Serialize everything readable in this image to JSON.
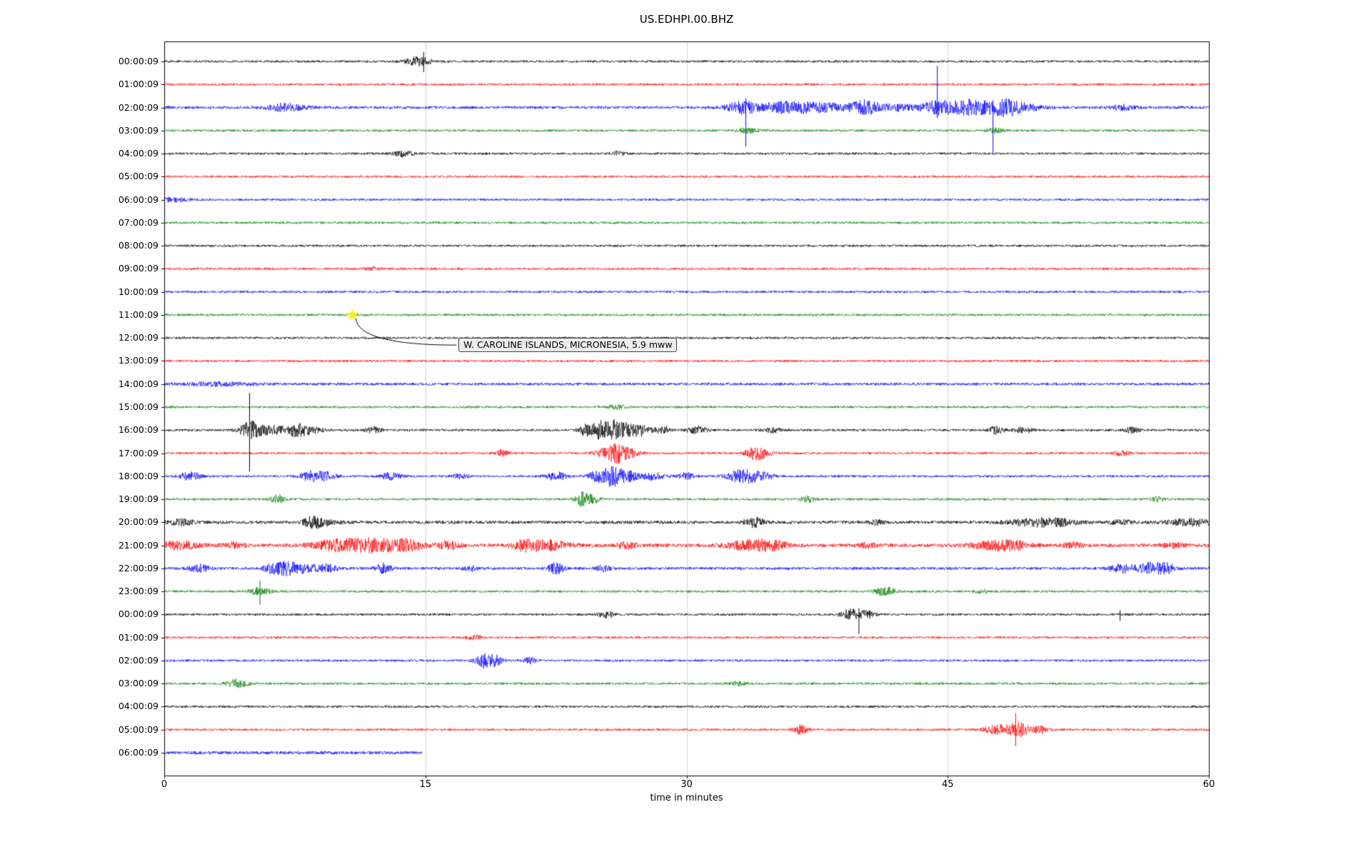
{
  "title": "US.EDHPI.00.BHZ",
  "chart_data": {
    "type": "line",
    "subtype": "helicorder-seismogram",
    "title": "US.EDHPI.00.BHZ",
    "xlabel": "time in minutes",
    "ylabel": "",
    "xlim": [
      0,
      60
    ],
    "x_ticks": [
      0,
      15,
      30,
      45,
      60
    ],
    "grid": "vertical",
    "legend": "none",
    "trace_colors": {
      "black": "#000000",
      "red": "#ff0000",
      "blue": "#0000ff",
      "green": "#008000"
    },
    "annotation": {
      "label": "W. CAROLINE ISLANDS, MICRONESIA, 5.9 mww",
      "marker": "yellow-star",
      "marker_color": "#ffee00",
      "x_minutes": 10.8,
      "row_index": 11,
      "box_x_minutes": 16.9,
      "box_row_index": 12
    },
    "rows": [
      {
        "label": "00:00:09",
        "color": "black",
        "events": [
          {
            "t": 14.6,
            "a": 6,
            "w": 0.5
          },
          {
            "t": 14.9,
            "up": 13,
            "dn": 15
          }
        ]
      },
      {
        "label": "01:00:09",
        "color": "red",
        "events": []
      },
      {
        "label": "02:00:09",
        "color": "blue",
        "noise": 2,
        "events": [
          {
            "t": 7,
            "a": 5,
            "w": 0.7
          },
          {
            "t": 33.2,
            "a": 7,
            "w": 0.6
          },
          {
            "t": 33.4,
            "up": 13,
            "dn": 55
          },
          {
            "t": 35.5,
            "a": 6,
            "w": 1.2
          },
          {
            "t": 38,
            "a": 5,
            "w": 1.5
          },
          {
            "t": 40.3,
            "a": 7,
            "w": 0.5
          },
          {
            "t": 42,
            "a": 4,
            "w": 1
          },
          {
            "t": 44.4,
            "a": 9,
            "w": 0.6
          },
          {
            "t": 44.4,
            "up": 58,
            "dn": 15
          },
          {
            "t": 46.3,
            "a": 11,
            "w": 0.8
          },
          {
            "t": 47.6,
            "up": 10,
            "dn": 63
          },
          {
            "t": 48.2,
            "a": 9,
            "w": 0.6
          },
          {
            "t": 49.2,
            "a": 5,
            "w": 0.8
          },
          {
            "t": 55,
            "a": 3,
            "w": 0.5
          }
        ]
      },
      {
        "label": "03:00:09",
        "color": "green",
        "events": [
          {
            "t": 33.5,
            "a": 3,
            "w": 0.4
          },
          {
            "t": 47.7,
            "a": 3.5,
            "w": 0.3
          }
        ]
      },
      {
        "label": "04:00:09",
        "color": "black",
        "events": [
          {
            "t": 13.7,
            "a": 4,
            "w": 0.4
          },
          {
            "t": 26,
            "a": 2.5,
            "w": 0.3
          }
        ]
      },
      {
        "label": "05:00:09",
        "color": "red",
        "events": []
      },
      {
        "label": "06:00:09",
        "color": "blue",
        "events": [
          {
            "t": 0.5,
            "a": 2.5,
            "w": 0.6
          }
        ]
      },
      {
        "label": "07:00:09",
        "color": "green",
        "events": []
      },
      {
        "label": "08:00:09",
        "color": "black",
        "events": []
      },
      {
        "label": "09:00:09",
        "color": "red",
        "events": [
          {
            "t": 12,
            "a": 2,
            "w": 0.3
          }
        ]
      },
      {
        "label": "10:00:09",
        "color": "blue",
        "events": []
      },
      {
        "label": "11:00:09",
        "color": "green",
        "events": []
      },
      {
        "label": "12:00:09",
        "color": "black",
        "events": []
      },
      {
        "label": "13:00:09",
        "color": "red",
        "events": []
      },
      {
        "label": "14:00:09",
        "color": "blue",
        "noise": 1.9,
        "events": [
          {
            "t": 3,
            "a": 2,
            "w": 1.5
          }
        ]
      },
      {
        "label": "15:00:09",
        "color": "green",
        "events": [
          {
            "t": 26,
            "a": 2.5,
            "w": 0.4
          }
        ]
      },
      {
        "label": "16:00:09",
        "color": "black",
        "events": [
          {
            "t": 4.9,
            "a": 10,
            "w": 0.4
          },
          {
            "t": 4.9,
            "up": 52,
            "dn": 58
          },
          {
            "t": 6,
            "a": 6,
            "w": 0.8
          },
          {
            "t": 7.6,
            "a": 7,
            "w": 0.4
          },
          {
            "t": 8.4,
            "a": 4,
            "w": 0.5
          },
          {
            "t": 12,
            "a": 4,
            "w": 0.3
          },
          {
            "t": 24.2,
            "a": 8,
            "w": 0.3
          },
          {
            "t": 25,
            "a": 13,
            "w": 0.25
          },
          {
            "t": 25.7,
            "a": 15,
            "w": 0.25
          },
          {
            "t": 26.4,
            "a": 10,
            "w": 0.3
          },
          {
            "t": 27.3,
            "a": 8,
            "w": 0.4
          },
          {
            "t": 28.6,
            "a": 6,
            "w": 0.3
          },
          {
            "t": 30.6,
            "a": 5,
            "w": 0.4
          },
          {
            "t": 35,
            "a": 3,
            "w": 0.4
          },
          {
            "t": 47.8,
            "a": 5,
            "w": 0.3
          },
          {
            "t": 49.3,
            "a": 4,
            "w": 0.4
          },
          {
            "t": 55.6,
            "a": 3.5,
            "w": 0.3
          }
        ]
      },
      {
        "label": "17:00:09",
        "color": "red",
        "events": [
          {
            "t": 19.4,
            "a": 4,
            "w": 0.25
          },
          {
            "t": 25.3,
            "a": 6,
            "w": 0.4
          },
          {
            "t": 26,
            "a": 11,
            "w": 0.3
          },
          {
            "t": 26.7,
            "a": 6,
            "w": 0.4
          },
          {
            "t": 33.9,
            "a": 7,
            "w": 0.35
          },
          {
            "t": 34.4,
            "a": 4,
            "w": 0.4
          },
          {
            "t": 55,
            "a": 3,
            "w": 0.3
          }
        ]
      },
      {
        "label": "18:00:09",
        "color": "blue",
        "events": [
          {
            "t": 1.5,
            "a": 6,
            "w": 0.4
          },
          {
            "t": 8.5,
            "a": 7,
            "w": 0.5
          },
          {
            "t": 9.3,
            "a": 4,
            "w": 0.4
          },
          {
            "t": 13,
            "a": 5,
            "w": 0.4
          },
          {
            "t": 17,
            "a": 3,
            "w": 0.3
          },
          {
            "t": 22.5,
            "a": 6,
            "w": 0.4
          },
          {
            "t": 25,
            "a": 9,
            "w": 0.4
          },
          {
            "t": 25.8,
            "a": 13,
            "w": 0.3
          },
          {
            "t": 26.6,
            "a": 8,
            "w": 0.4
          },
          {
            "t": 28,
            "a": 5,
            "w": 0.5
          },
          {
            "t": 30,
            "a": 5,
            "w": 0.3
          },
          {
            "t": 32.8,
            "a": 7,
            "w": 0.4
          },
          {
            "t": 33.7,
            "a": 8,
            "w": 0.4
          },
          {
            "t": 34.5,
            "a": 5,
            "w": 0.35
          }
        ]
      },
      {
        "label": "19:00:09",
        "color": "green",
        "events": [
          {
            "t": 6.5,
            "a": 6,
            "w": 0.3
          },
          {
            "t": 24,
            "a": 9,
            "w": 0.25
          },
          {
            "t": 24.6,
            "a": 6,
            "w": 0.3
          },
          {
            "t": 37,
            "a": 4,
            "w": 0.3
          },
          {
            "t": 57,
            "a": 3,
            "w": 0.3
          }
        ]
      },
      {
        "label": "20:00:09",
        "color": "black",
        "noise": 2.2,
        "events": [
          {
            "t": 1,
            "a": 4,
            "w": 0.5
          },
          {
            "t": 8.5,
            "a": 6,
            "w": 0.35
          },
          {
            "t": 9.2,
            "a": 4,
            "w": 0.5
          },
          {
            "t": 33.9,
            "a": 6,
            "w": 0.4
          },
          {
            "t": 41,
            "a": 3,
            "w": 0.3
          },
          {
            "t": 49.8,
            "a": 4,
            "w": 1
          },
          {
            "t": 51.3,
            "a": 4,
            "w": 0.8
          },
          {
            "t": 55,
            "a": 3,
            "w": 0.4
          },
          {
            "t": 59,
            "a": 4.5,
            "w": 0.9
          }
        ]
      },
      {
        "label": "21:00:09",
        "color": "red",
        "noise": 2.5,
        "events": [
          {
            "t": 0.8,
            "a": 5,
            "w": 0.8
          },
          {
            "t": 4,
            "a": 3,
            "w": 0.5
          },
          {
            "t": 9.8,
            "a": 5,
            "w": 1
          },
          {
            "t": 11.2,
            "a": 6,
            "w": 1
          },
          {
            "t": 12.8,
            "a": 6,
            "w": 0.9
          },
          {
            "t": 14.2,
            "a": 5,
            "w": 0.6
          },
          {
            "t": 16.3,
            "a": 5,
            "w": 0.4
          },
          {
            "t": 20.7,
            "a": 6,
            "w": 0.5
          },
          {
            "t": 22,
            "a": 6,
            "w": 0.9
          },
          {
            "t": 26.6,
            "a": 4,
            "w": 0.4
          },
          {
            "t": 33.6,
            "a": 6,
            "w": 0.9
          },
          {
            "t": 35,
            "a": 5,
            "w": 0.6
          },
          {
            "t": 40.4,
            "a": 4,
            "w": 0.3
          },
          {
            "t": 47.6,
            "a": 5,
            "w": 0.9
          },
          {
            "t": 48.9,
            "a": 5,
            "w": 0.6
          },
          {
            "t": 52.2,
            "a": 3,
            "w": 0.4
          },
          {
            "t": 58,
            "a": 3,
            "w": 0.4
          }
        ]
      },
      {
        "label": "22:00:09",
        "color": "blue",
        "noise": 1.9,
        "events": [
          {
            "t": 2,
            "a": 5,
            "w": 0.4
          },
          {
            "t": 6.3,
            "a": 7,
            "w": 0.4
          },
          {
            "t": 7.1,
            "a": 8,
            "w": 0.4
          },
          {
            "t": 8.1,
            "a": 6,
            "w": 0.5
          },
          {
            "t": 9.4,
            "a": 5,
            "w": 0.4
          },
          {
            "t": 12.6,
            "a": 7,
            "w": 0.3
          },
          {
            "t": 17.6,
            "a": 3,
            "w": 0.3
          },
          {
            "t": 22.5,
            "a": 8,
            "w": 0.3
          },
          {
            "t": 25.2,
            "a": 4,
            "w": 0.3
          },
          {
            "t": 55,
            "a": 6,
            "w": 0.5
          },
          {
            "t": 56.6,
            "a": 7,
            "w": 0.5
          },
          {
            "t": 57.6,
            "a": 6,
            "w": 0.4
          }
        ]
      },
      {
        "label": "23:00:09",
        "color": "green",
        "events": [
          {
            "t": 5.5,
            "a": 5,
            "w": 0.4
          },
          {
            "t": 5.5,
            "up": 15,
            "dn": 19
          },
          {
            "t": 41.4,
            "a": 6,
            "w": 0.4
          },
          {
            "t": 47,
            "a": 2.5,
            "w": 0.3
          }
        ]
      },
      {
        "label": "00:00:09",
        "color": "black",
        "events": [
          {
            "t": 25.4,
            "a": 5,
            "w": 0.3
          },
          {
            "t": 39.4,
            "a": 7,
            "w": 0.4
          },
          {
            "t": 39.9,
            "up": 9,
            "dn": 27
          },
          {
            "t": 40.4,
            "a": 5,
            "w": 0.3
          },
          {
            "t": 54.9,
            "up": 6,
            "dn": 9
          }
        ]
      },
      {
        "label": "01:00:09",
        "color": "red",
        "events": [
          {
            "t": 17.8,
            "a": 3,
            "w": 0.3
          }
        ]
      },
      {
        "label": "02:00:09",
        "color": "blue",
        "events": [
          {
            "t": 18.3,
            "a": 9,
            "w": 0.3
          },
          {
            "t": 19,
            "a": 7,
            "w": 0.3
          },
          {
            "t": 21,
            "a": 4,
            "w": 0.3
          }
        ]
      },
      {
        "label": "03:00:09",
        "color": "green",
        "events": [
          {
            "t": 4.2,
            "a": 6,
            "w": 0.4
          },
          {
            "t": 33,
            "a": 2.5,
            "w": 0.3
          }
        ]
      },
      {
        "label": "04:00:09",
        "color": "black",
        "events": []
      },
      {
        "label": "05:00:09",
        "color": "red",
        "events": [
          {
            "t": 36.6,
            "a": 6,
            "w": 0.3
          },
          {
            "t": 47.9,
            "a": 6,
            "w": 0.6
          },
          {
            "t": 48.9,
            "up": 23,
            "dn": 23
          },
          {
            "t": 49.1,
            "a": 9,
            "w": 0.4
          },
          {
            "t": 50.3,
            "a": 5,
            "w": 0.3
          }
        ]
      },
      {
        "label": "06:00:09",
        "color": "blue",
        "noise": 2.2,
        "extent": 14.8,
        "events": []
      }
    ]
  }
}
